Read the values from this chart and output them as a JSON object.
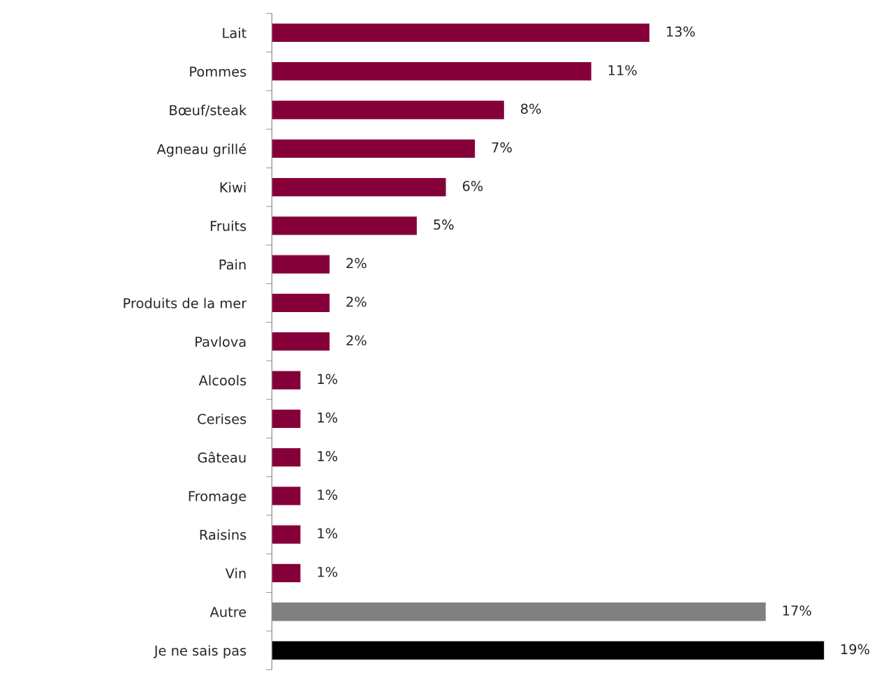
{
  "chart_data": {
    "type": "bar",
    "orientation": "horizontal",
    "categories": [
      "Lait",
      "Pommes",
      "Bœuf/steak",
      "Agneau grillé",
      "Kiwi",
      "Fruits",
      "Pain",
      "Produits de la mer",
      "Pavlova",
      "Alcools",
      "Cerises",
      "Gâteau",
      "Fromage",
      "Raisins",
      "Vin",
      "Autre",
      "Je ne sais pas"
    ],
    "values": [
      13,
      11,
      8,
      7,
      6,
      5,
      2,
      2,
      2,
      1,
      1,
      1,
      1,
      1,
      1,
      17,
      19
    ],
    "value_labels": [
      "13%",
      "11%",
      "8%",
      "7%",
      "6%",
      "5%",
      "2%",
      "2%",
      "2%",
      "1%",
      "1%",
      "1%",
      "1%",
      "1%",
      "1%",
      "17%",
      "19%"
    ],
    "colors": [
      "#850038",
      "#850038",
      "#850038",
      "#850038",
      "#850038",
      "#850038",
      "#850038",
      "#850038",
      "#850038",
      "#850038",
      "#850038",
      "#850038",
      "#850038",
      "#850038",
      "#850038",
      "#808080",
      "#000000"
    ],
    "grid": false,
    "legend": false
  }
}
